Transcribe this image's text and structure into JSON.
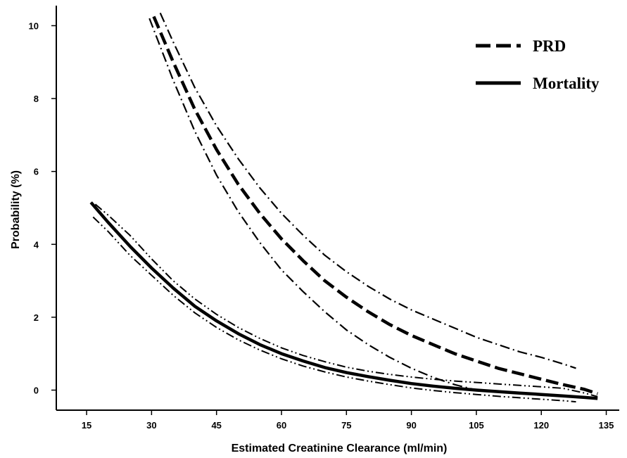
{
  "chart_data": {
    "type": "line",
    "title": "",
    "xlabel": "Estimated Creatinine Clearance (ml/min)",
    "ylabel": "Probability (%)",
    "xlim": [
      8,
      138
    ],
    "ylim": [
      -0.55,
      10.55
    ],
    "x_ticks": [
      15,
      30,
      45,
      60,
      75,
      90,
      105,
      120,
      135
    ],
    "y_ticks": [
      0,
      2,
      4,
      6,
      8,
      10
    ],
    "grid": false,
    "legend_position": "top-right",
    "legend": [
      "PRD",
      "Mortality"
    ],
    "series": [
      {
        "name": "PRD",
        "style": "dashed",
        "color": "#000000",
        "x": [
          30.5,
          35,
          40,
          45,
          50,
          55,
          60,
          65,
          70,
          75,
          80,
          85,
          90,
          95,
          100,
          105,
          110,
          115,
          120,
          125,
          130,
          133
        ],
        "y": [
          10.25,
          9.0,
          7.7,
          6.6,
          5.65,
          4.85,
          4.15,
          3.55,
          3.0,
          2.55,
          2.15,
          1.8,
          1.5,
          1.25,
          1.0,
          0.8,
          0.6,
          0.45,
          0.3,
          0.15,
          0.02,
          -0.1
        ]
      },
      {
        "name": "PRD lower CI",
        "style": "dash-dot",
        "color": "#000000",
        "x": [
          29.5,
          35,
          40,
          45,
          50,
          55,
          60,
          65,
          70,
          75,
          80,
          85,
          90,
          95,
          100,
          105
        ],
        "y": [
          10.2,
          8.5,
          7.1,
          5.9,
          4.9,
          4.05,
          3.3,
          2.7,
          2.15,
          1.65,
          1.25,
          0.9,
          0.6,
          0.35,
          0.15,
          0.0
        ]
      },
      {
        "name": "PRD upper CI",
        "style": "dash-dot",
        "color": "#000000",
        "x": [
          32,
          35,
          40,
          45,
          50,
          55,
          60,
          65,
          70,
          75,
          80,
          85,
          90,
          95,
          100,
          105,
          110,
          115,
          120,
          125,
          128
        ],
        "y": [
          10.35,
          9.55,
          8.3,
          7.25,
          6.35,
          5.55,
          4.85,
          4.25,
          3.7,
          3.25,
          2.85,
          2.5,
          2.2,
          1.95,
          1.7,
          1.45,
          1.25,
          1.05,
          0.9,
          0.72,
          0.6
        ]
      },
      {
        "name": "Mortality",
        "style": "solid",
        "color": "#000000",
        "x": [
          16,
          20,
          25,
          30,
          35,
          40,
          45,
          50,
          55,
          60,
          65,
          70,
          75,
          80,
          85,
          90,
          95,
          100,
          105,
          110,
          115,
          120,
          125,
          130,
          133
        ],
        "y": [
          5.15,
          4.6,
          3.95,
          3.35,
          2.8,
          2.3,
          1.9,
          1.55,
          1.25,
          1.0,
          0.8,
          0.62,
          0.48,
          0.37,
          0.27,
          0.18,
          0.11,
          0.05,
          0.0,
          -0.04,
          -0.08,
          -0.12,
          -0.16,
          -0.2,
          -0.23
        ]
      },
      {
        "name": "Mortality lower CI",
        "style": "dash-dot-dot",
        "color": "#000000",
        "x": [
          16.5,
          20,
          25,
          30,
          35,
          40,
          45,
          50,
          55,
          60,
          65,
          70,
          75,
          80,
          85,
          90,
          95,
          100,
          105,
          110,
          115,
          120,
          125,
          128
        ],
        "y": [
          4.75,
          4.35,
          3.7,
          3.15,
          2.6,
          2.12,
          1.72,
          1.38,
          1.1,
          0.86,
          0.66,
          0.5,
          0.36,
          0.25,
          0.15,
          0.06,
          -0.01,
          -0.07,
          -0.12,
          -0.17,
          -0.21,
          -0.25,
          -0.29,
          -0.32
        ]
      },
      {
        "name": "Mortality upper CI",
        "style": "dash-dot-dot",
        "color": "#000000",
        "x": [
          17,
          20,
          25,
          30,
          35,
          40,
          45,
          50,
          55,
          60,
          65,
          70,
          75,
          80,
          85,
          90,
          95,
          100,
          105,
          110,
          115,
          120,
          125,
          130,
          133
        ],
        "y": [
          5.1,
          4.8,
          4.25,
          3.6,
          3.0,
          2.5,
          2.08,
          1.72,
          1.42,
          1.16,
          0.95,
          0.78,
          0.63,
          0.52,
          0.43,
          0.36,
          0.3,
          0.25,
          0.21,
          0.17,
          0.13,
          0.09,
          0.05,
          -0.08,
          -0.18
        ]
      }
    ]
  }
}
